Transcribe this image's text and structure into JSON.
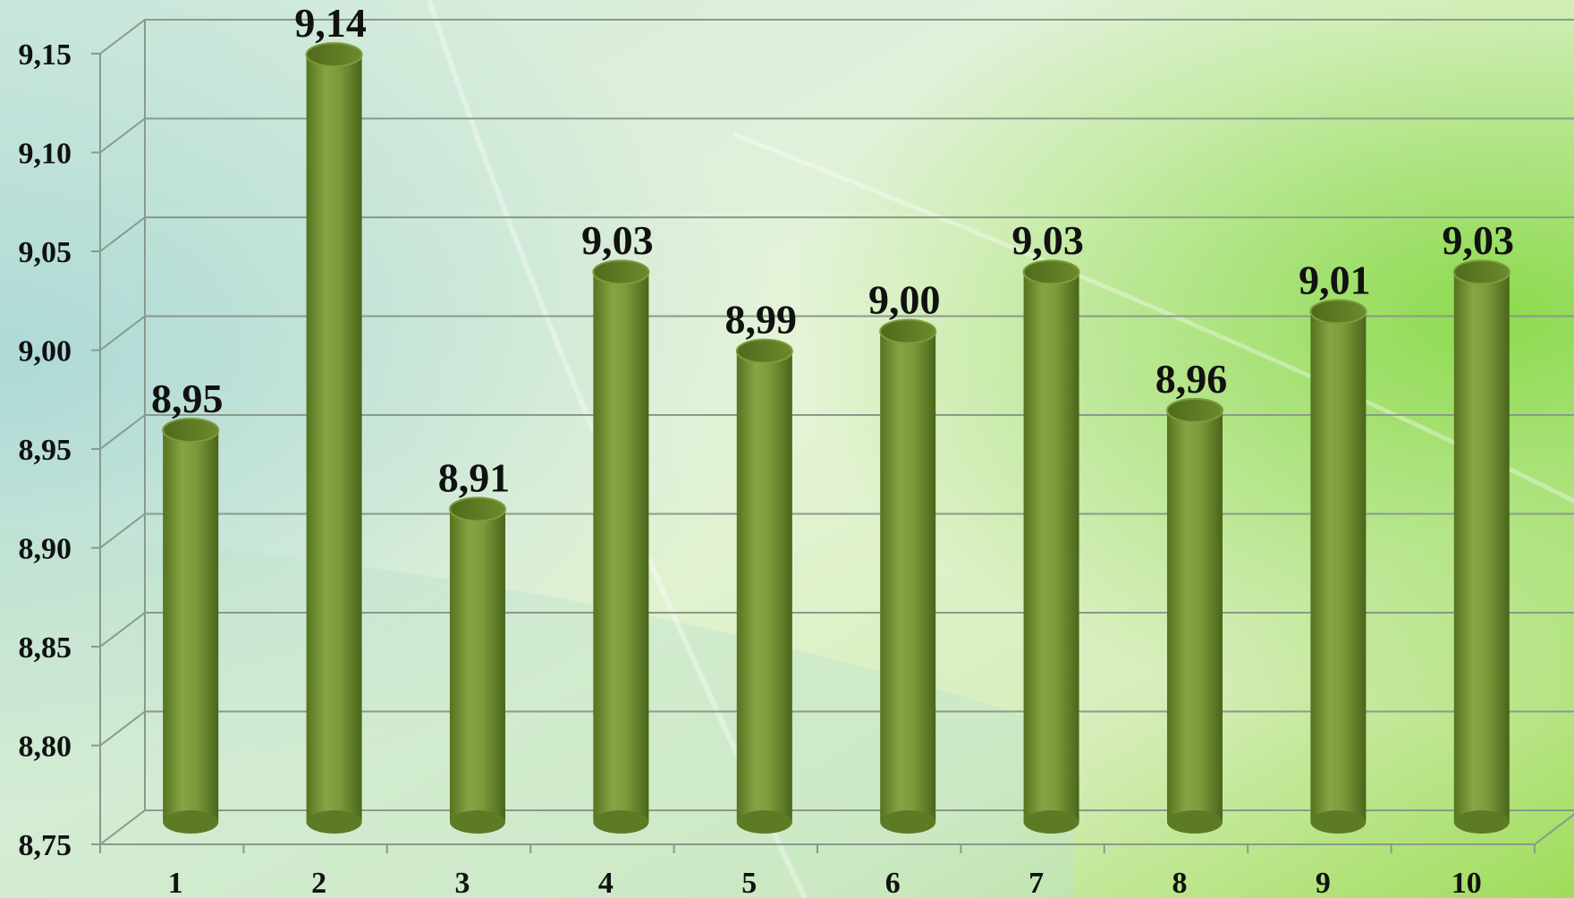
{
  "chart_data": {
    "type": "bar",
    "title": "",
    "xlabel": "",
    "ylabel": "",
    "categories": [
      "1",
      "2",
      "3",
      "4",
      "5",
      "6",
      "7",
      "8",
      "9",
      "10"
    ],
    "values": [
      8.95,
      9.14,
      8.91,
      9.03,
      8.99,
      9.0,
      9.03,
      8.96,
      9.01,
      9.03
    ],
    "data_labels": [
      "8,95",
      "9,14",
      "8,91",
      "9,03",
      "8,99",
      "9,00",
      "9,03",
      "8,96",
      "9,01",
      "9,03"
    ],
    "ylim": [
      8.75,
      9.15
    ],
    "yticks": [
      8.75,
      8.8,
      8.85,
      8.9,
      8.95,
      9.0,
      9.05,
      9.1,
      9.15
    ],
    "ytick_labels": [
      "8,75",
      "8,80",
      "8,85",
      "8,90",
      "8,95",
      "9,00",
      "9,05",
      "9,10",
      "9,15"
    ],
    "grid": true,
    "legend": "none",
    "style": "3d-cylinder",
    "colors": {
      "bar": "#7a9a3a",
      "bar_dark": "#4f6a1c",
      "bar_light": "#9cba55",
      "grid": "#8a9a8a",
      "text": "#111111"
    }
  }
}
